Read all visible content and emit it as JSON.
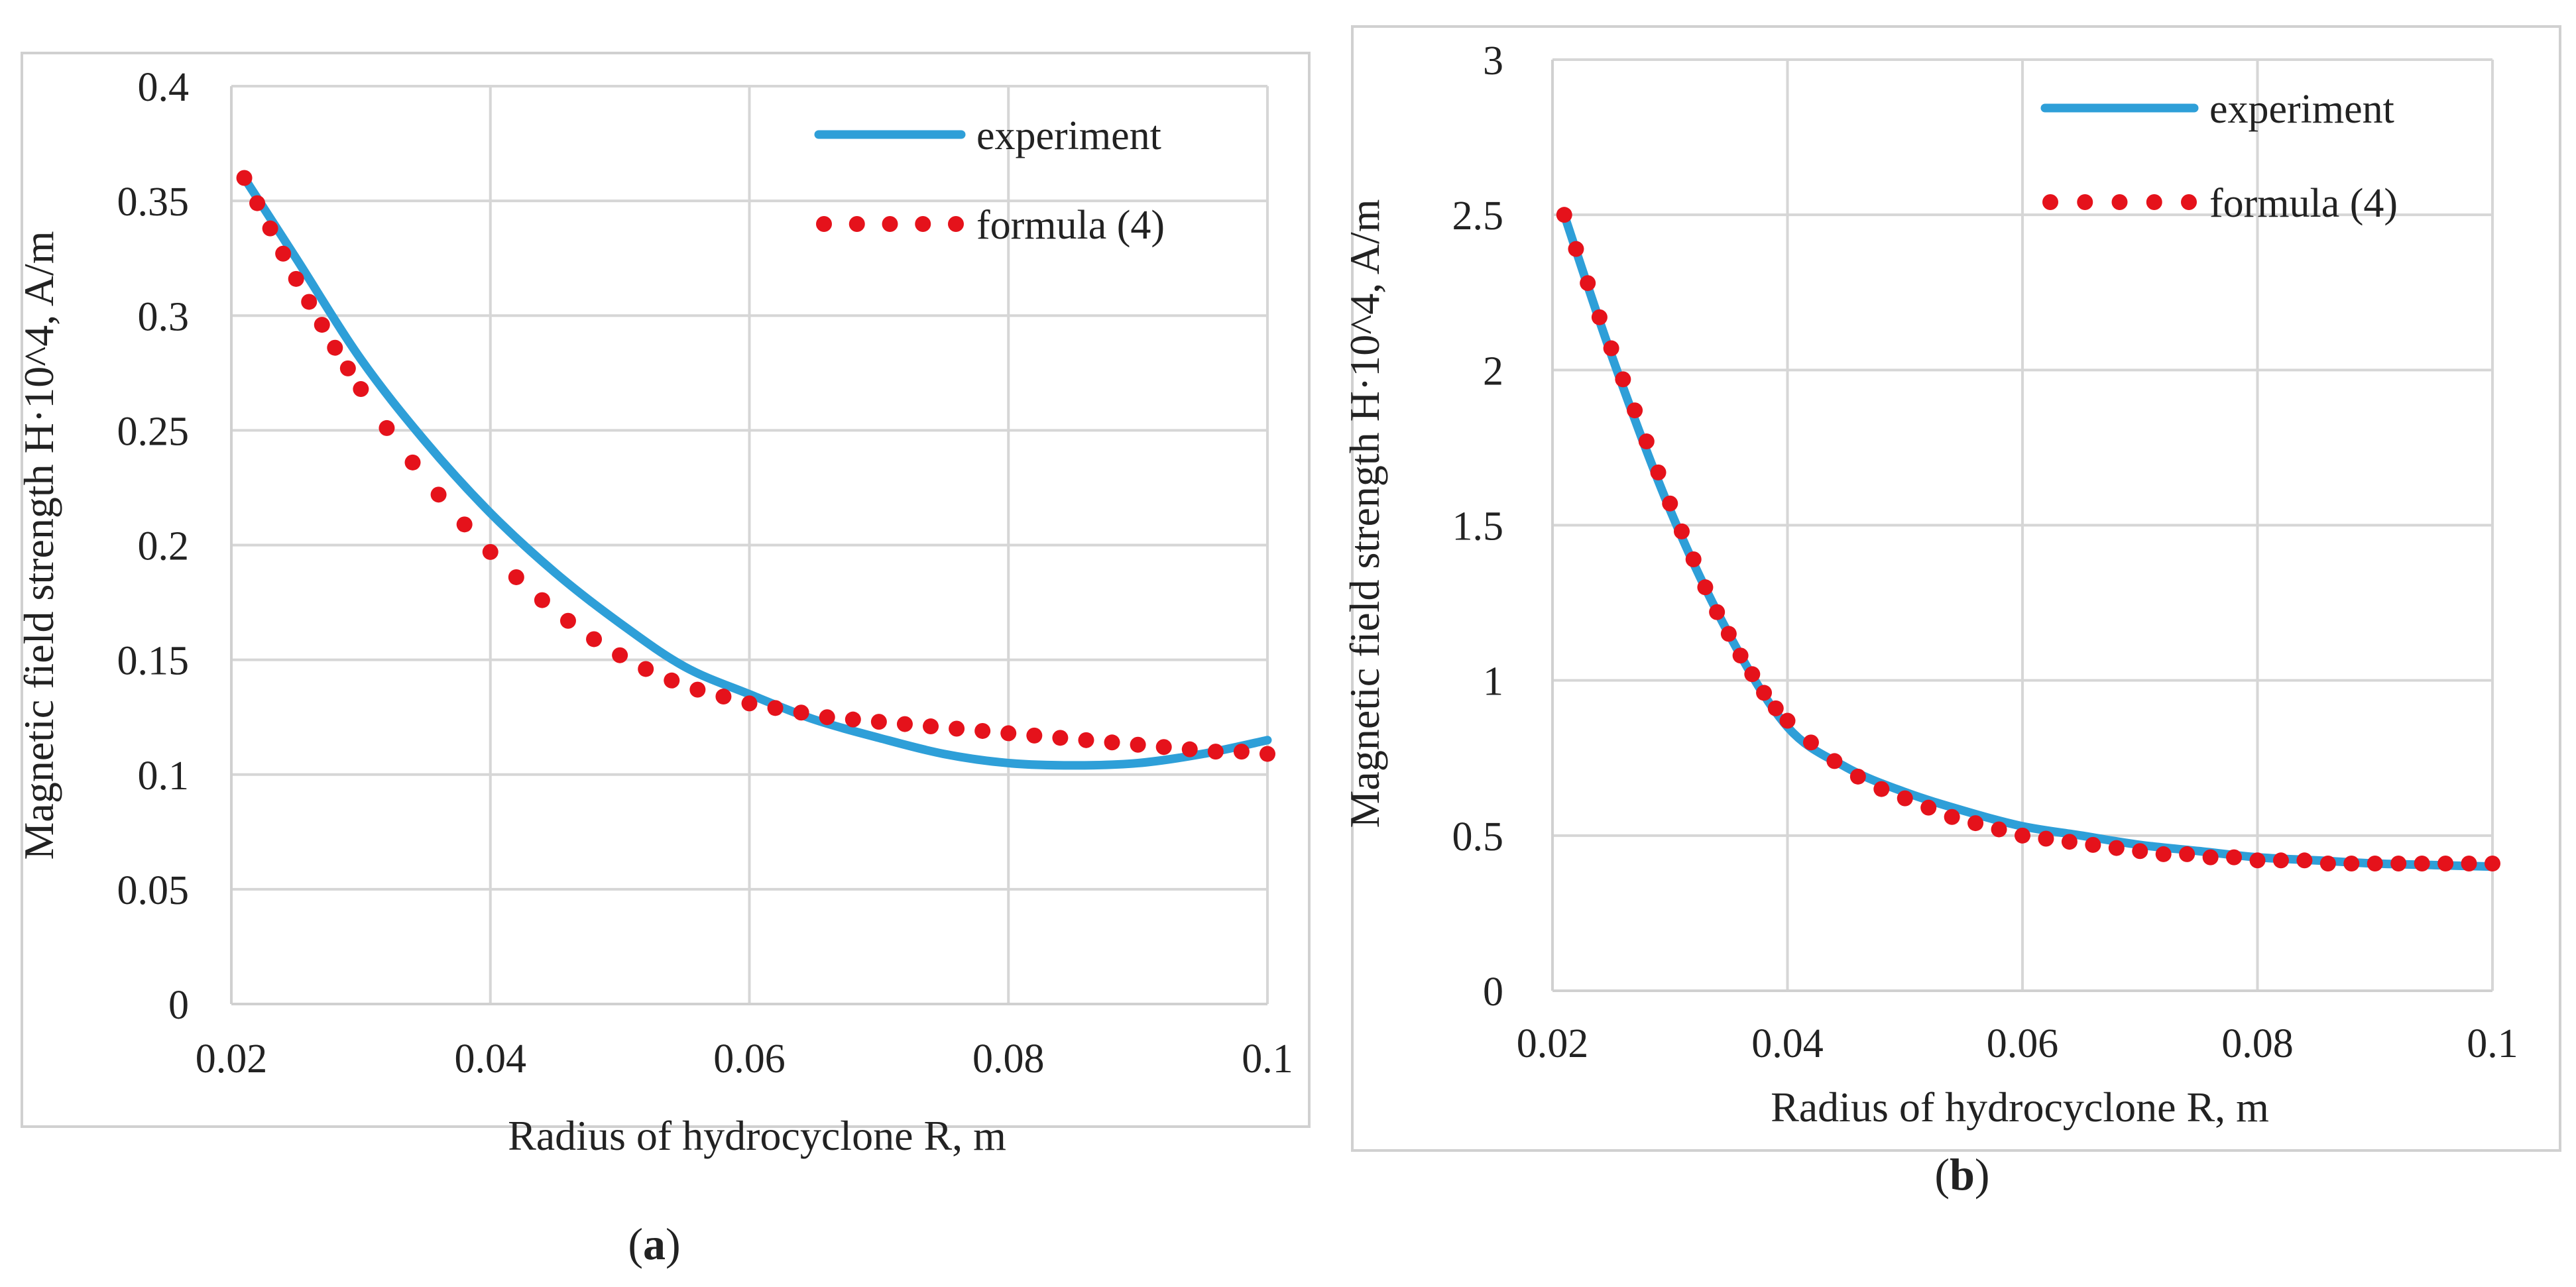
{
  "chart_data": [
    {
      "type": "line",
      "panel_label": "a",
      "title": "",
      "xlabel": "Radius of hydrocyclone R, m",
      "ylabel": "Magnetic field strength H·10^4, A/m",
      "xlim": [
        0.02,
        0.1
      ],
      "ylim": [
        0,
        0.4
      ],
      "grid": true,
      "legend_position": "top-right",
      "x_ticks": [
        0.02,
        0.04,
        0.06,
        0.08,
        0.1
      ],
      "x_tick_labels": [
        "0.02",
        "0.04",
        "0.06",
        "0.08",
        "0.1"
      ],
      "y_ticks": [
        0,
        0.05,
        0.1,
        0.15,
        0.2,
        0.25,
        0.3,
        0.35,
        0.4
      ],
      "y_tick_labels": [
        "0",
        "0.05",
        "0.1",
        "0.15",
        "0.2",
        "0.25",
        "0.3",
        "0.35",
        "0.4"
      ],
      "series": [
        {
          "name": "experiment",
          "style": "solid",
          "color": "#2E9FD8",
          "x": [
            0.021,
            0.025,
            0.03,
            0.035,
            0.04,
            0.045,
            0.05,
            0.055,
            0.06,
            0.065,
            0.07,
            0.075,
            0.08,
            0.085,
            0.09,
            0.095,
            0.1
          ],
          "y": [
            0.36,
            0.325,
            0.281,
            0.245,
            0.214,
            0.188,
            0.166,
            0.147,
            0.135,
            0.124,
            0.116,
            0.109,
            0.105,
            0.104,
            0.105,
            0.109,
            0.115
          ]
        },
        {
          "name": "formula (4)",
          "style": "dotted",
          "color": "#E5121B",
          "x": [
            0.021,
            0.022,
            0.023,
            0.024,
            0.025,
            0.026,
            0.027,
            0.028,
            0.029,
            0.03,
            0.032,
            0.034,
            0.036,
            0.038,
            0.04,
            0.042,
            0.044,
            0.046,
            0.048,
            0.05,
            0.052,
            0.054,
            0.056,
            0.058,
            0.06,
            0.062,
            0.064,
            0.066,
            0.068,
            0.07,
            0.072,
            0.074,
            0.076,
            0.078,
            0.08,
            0.082,
            0.084,
            0.086,
            0.088,
            0.09,
            0.092,
            0.094,
            0.096,
            0.098,
            0.1
          ],
          "y": [
            0.36,
            0.349,
            0.338,
            0.327,
            0.316,
            0.306,
            0.296,
            0.286,
            0.277,
            0.268,
            0.251,
            0.236,
            0.222,
            0.209,
            0.197,
            0.186,
            0.176,
            0.167,
            0.159,
            0.152,
            0.146,
            0.141,
            0.137,
            0.134,
            0.131,
            0.129,
            0.127,
            0.125,
            0.124,
            0.123,
            0.122,
            0.121,
            0.12,
            0.119,
            0.118,
            0.117,
            0.116,
            0.115,
            0.114,
            0.113,
            0.112,
            0.111,
            0.11,
            0.11,
            0.109
          ]
        }
      ]
    },
    {
      "type": "line",
      "panel_label": "b",
      "title": "",
      "xlabel": "Radius of hydrocyclone R, m",
      "ylabel": "Magnetic field strength H·10^4, A/m",
      "xlim": [
        0.02,
        0.1
      ],
      "ylim": [
        0,
        3
      ],
      "grid": true,
      "legend_position": "top-right",
      "x_ticks": [
        0.02,
        0.04,
        0.06,
        0.08,
        0.1
      ],
      "x_tick_labels": [
        "0.02",
        "0.04",
        "0.06",
        "0.08",
        "0.1"
      ],
      "y_ticks": [
        0,
        0.5,
        1,
        1.5,
        2,
        2.5,
        3
      ],
      "y_tick_labels": [
        "0",
        "0.5",
        "1",
        "1.5",
        "2",
        "2.5",
        "3"
      ],
      "series": [
        {
          "name": "experiment",
          "style": "solid",
          "color": "#2E9FD8",
          "x": [
            0.021,
            0.025,
            0.03,
            0.035,
            0.04,
            0.045,
            0.05,
            0.055,
            0.06,
            0.065,
            0.07,
            0.075,
            0.08,
            0.085,
            0.09,
            0.095,
            0.1
          ],
          "y": [
            2.5,
            2.05,
            1.55,
            1.15,
            0.85,
            0.72,
            0.64,
            0.58,
            0.53,
            0.5,
            0.47,
            0.45,
            0.43,
            0.42,
            0.41,
            0.405,
            0.4
          ]
        },
        {
          "name": "formula (4)",
          "style": "dotted",
          "color": "#E5121B",
          "x": [
            0.021,
            0.022,
            0.023,
            0.024,
            0.025,
            0.026,
            0.027,
            0.028,
            0.029,
            0.03,
            0.031,
            0.032,
            0.033,
            0.034,
            0.035,
            0.036,
            0.037,
            0.038,
            0.039,
            0.04,
            0.042,
            0.044,
            0.046,
            0.048,
            0.05,
            0.052,
            0.054,
            0.056,
            0.058,
            0.06,
            0.062,
            0.064,
            0.066,
            0.068,
            0.07,
            0.072,
            0.074,
            0.076,
            0.078,
            0.08,
            0.082,
            0.084,
            0.086,
            0.088,
            0.09,
            0.092,
            0.094,
            0.096,
            0.098,
            0.1
          ],
          "y": [
            2.5,
            2.39,
            2.28,
            2.17,
            2.07,
            1.97,
            1.87,
            1.77,
            1.67,
            1.57,
            1.48,
            1.39,
            1.3,
            1.22,
            1.15,
            1.08,
            1.02,
            0.96,
            0.91,
            0.87,
            0.8,
            0.74,
            0.69,
            0.65,
            0.62,
            0.59,
            0.56,
            0.54,
            0.52,
            0.5,
            0.49,
            0.48,
            0.47,
            0.46,
            0.45,
            0.44,
            0.44,
            0.43,
            0.43,
            0.42,
            0.42,
            0.42,
            0.41,
            0.41,
            0.41,
            0.41,
            0.41,
            0.41,
            0.41,
            0.41
          ]
        }
      ]
    }
  ]
}
